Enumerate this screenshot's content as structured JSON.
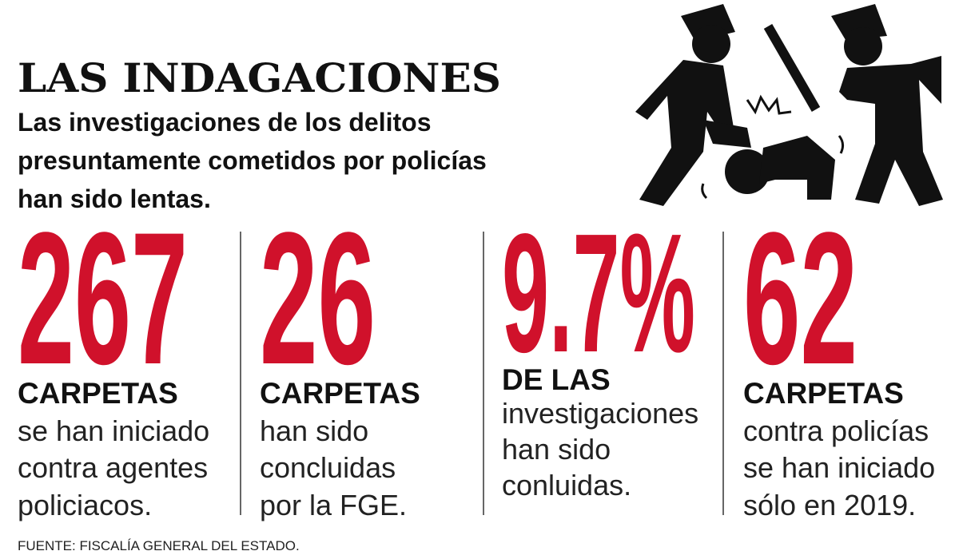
{
  "header": {
    "title": "LAS INDAGACIONES",
    "subtitle": [
      "Las investigaciones de los delitos",
      "presuntamente cometidos por policías",
      "han sido lentas."
    ]
  },
  "stats": [
    {
      "number": "267",
      "heading": "CARPETAS",
      "lines": [
        "se han iniciado",
        "contra agentes",
        "policiacos."
      ]
    },
    {
      "number": "26",
      "heading": "CARPETAS",
      "lines": [
        "han sido",
        "concluidas",
        "por la FGE."
      ]
    },
    {
      "number": "9.7%",
      "heading": "DE LAS",
      "lines": [
        "investigaciones",
        "han sido",
        "conluidas."
      ]
    },
    {
      "number": "62",
      "heading": "CARPETAS",
      "lines": [
        "contra policías",
        "se han iniciado",
        "sólo en 2019."
      ]
    }
  ],
  "source": "FUENTE: FISCALÍA GENERAL DEL ESTADO."
}
